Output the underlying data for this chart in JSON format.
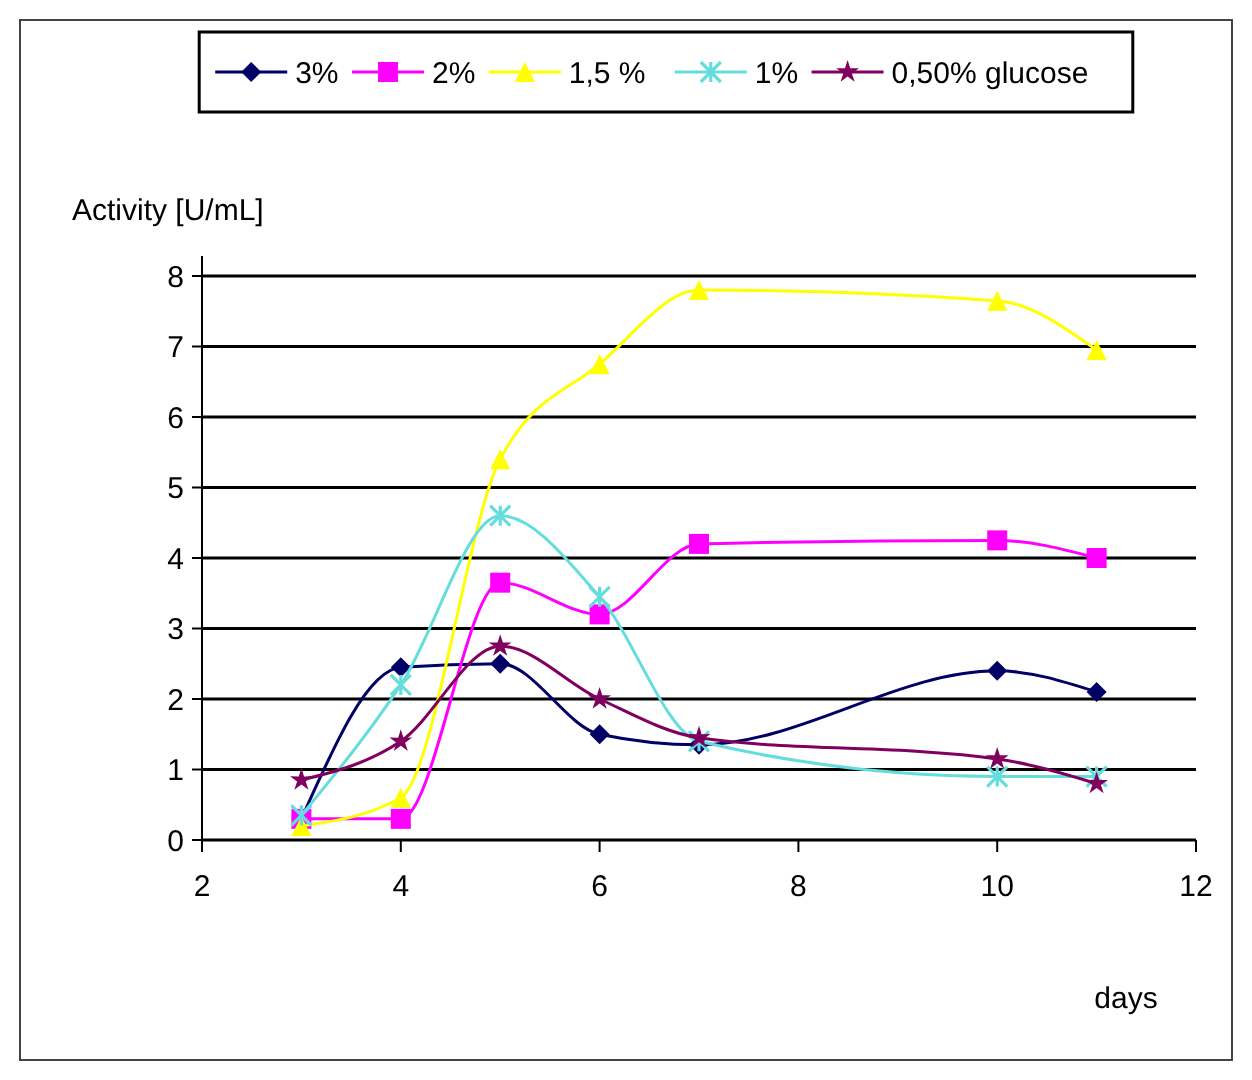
{
  "chart_data": {
    "type": "line",
    "xlabel": "days",
    "ylabel": "Activity  [U/mL]",
    "x": [
      3,
      4,
      5,
      6,
      7,
      10,
      11
    ],
    "xlim": [
      2,
      12
    ],
    "xticks": [
      2,
      4,
      6,
      8,
      10,
      12
    ],
    "ylim": [
      0,
      8
    ],
    "yticks": [
      0,
      1,
      2,
      3,
      4,
      5,
      6,
      7,
      8
    ],
    "grid": "y",
    "legend": "top",
    "series": [
      {
        "name": "3%",
        "color": "#000066",
        "marker": "diamond",
        "values": [
          0.3,
          2.45,
          2.5,
          1.5,
          1.35,
          2.4,
          2.1
        ]
      },
      {
        "name": "2%",
        "color": "#ff00ff",
        "marker": "square",
        "values": [
          0.3,
          0.3,
          3.65,
          3.2,
          4.2,
          4.25,
          4.0
        ]
      },
      {
        "name": "1,5 %",
        "color": "#ffff00",
        "marker": "triangle",
        "values": [
          0.2,
          0.6,
          5.4,
          6.75,
          7.8,
          7.65,
          6.95
        ]
      },
      {
        "name": "1%",
        "color": "#66dddd",
        "marker": "cross",
        "values": [
          0.35,
          2.2,
          4.6,
          3.45,
          1.4,
          0.9,
          0.9
        ]
      },
      {
        "name": "0,50% glucose",
        "color": "#800060",
        "marker": "star",
        "values": [
          0.85,
          1.4,
          2.75,
          2.0,
          1.45,
          1.15,
          0.8
        ]
      }
    ]
  }
}
